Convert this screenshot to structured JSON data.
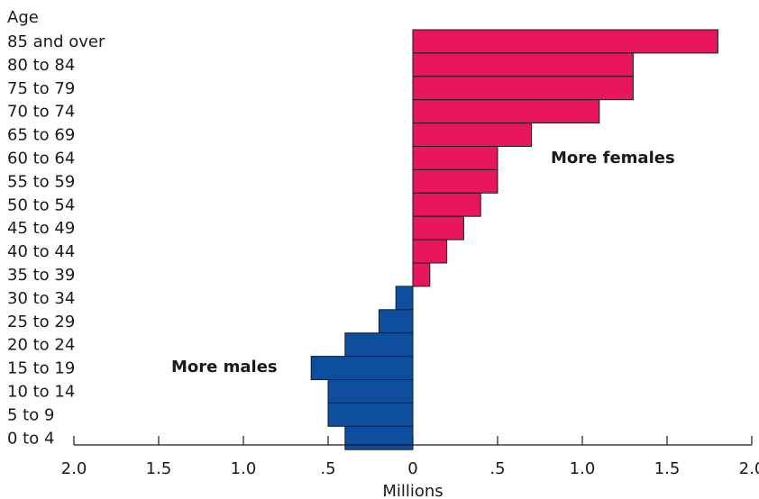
{
  "chart_data": {
    "type": "bar",
    "orientation": "horizontal",
    "y_title": "Age",
    "xlabel": "Millions",
    "categories": [
      "85 and over",
      "80 to 84",
      "75 to 79",
      "70 to 74",
      "65 to 69",
      "60 to 64",
      "55 to 59",
      "50 to 54",
      "45 to 49",
      "40 to 44",
      "35 to 39",
      "30 to 34",
      "25 to 29",
      "20 to 24",
      "15 to 19",
      "10 to 14",
      "5 to 9",
      "0 to 4"
    ],
    "values": [
      1.8,
      1.3,
      1.3,
      1.1,
      0.7,
      0.5,
      0.5,
      0.4,
      0.3,
      0.2,
      0.1,
      -0.1,
      -0.2,
      -0.4,
      -0.6,
      -0.5,
      -0.5,
      -0.4
    ],
    "xlim": [
      -2.0,
      2.0
    ],
    "x_ticks": [
      -2.0,
      -1.5,
      -1.0,
      -0.5,
      0,
      0.5,
      1.0,
      1.5,
      2.0
    ],
    "x_tick_labels": [
      "2.0",
      "1.5",
      "1.0",
      ".5",
      "0",
      ".5",
      "1.0",
      "1.5",
      "2.0"
    ],
    "annotations": [
      "More females",
      "More males"
    ],
    "colors": {
      "positive": "#e8155f",
      "negative": "#0d4f9e"
    },
    "grid": false,
    "legend": "none"
  }
}
